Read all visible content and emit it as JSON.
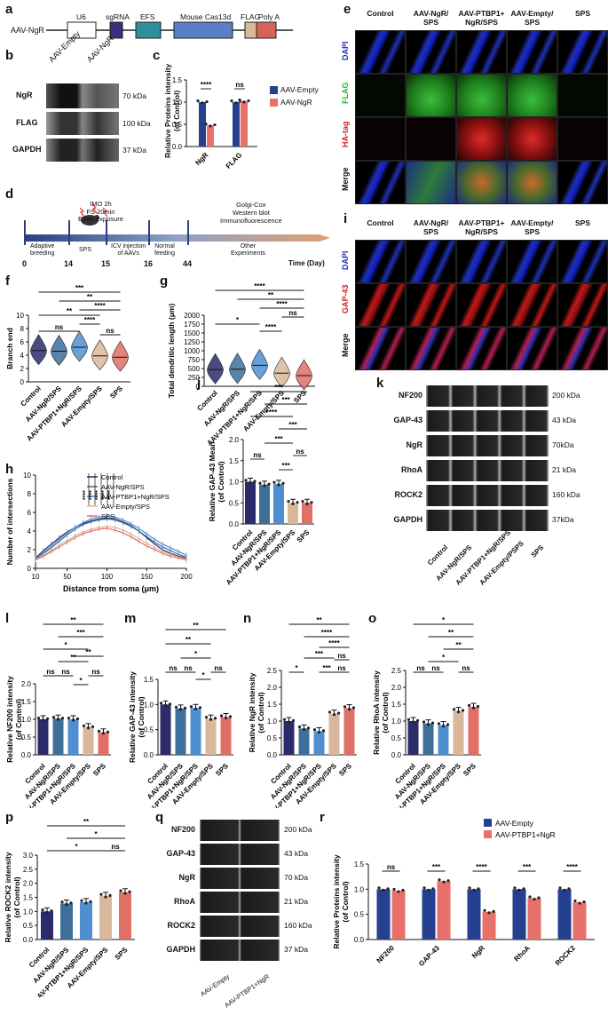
{
  "panels": [
    "a",
    "b",
    "c",
    "d",
    "e",
    "f",
    "g",
    "h",
    "i",
    "j",
    "k",
    "l",
    "m",
    "n",
    "o",
    "p",
    "q",
    "r"
  ],
  "colors": {
    "control": "#2b2b6b",
    "ngr": "#3d6f9a",
    "ptbp1": "#4f8fcf",
    "empty": "#d8b79b",
    "sps": "#e07066",
    "aav_empty_bar": "#25408f",
    "aav_ngr_bar": "#e8706a",
    "dapi": "#1e2fbf",
    "flag": "#2fb52f",
    "ha": "#d62020",
    "gap": "#d62020",
    "timeline": "#d9a070"
  },
  "a": {
    "construct": "AAV-NgR",
    "elements": [
      "U6",
      "sgRNA",
      "EFS",
      "Mouse Cas13d",
      "FLAG",
      "Poly A"
    ]
  },
  "b": {
    "lanes": [
      "AAV-Empty",
      "AAV-NgR"
    ],
    "rows": [
      {
        "name": "NgR",
        "kda": "70 kDa"
      },
      {
        "name": "FLAG",
        "kda": "100 kDa"
      },
      {
        "name": "GAPDH",
        "kda": "37 kDa"
      }
    ]
  },
  "c": {
    "ylabel": "Relative Proteins intensity\n(of Control)",
    "legend": [
      "AAV-Empty",
      "AAV-NgR"
    ],
    "sig": [
      "****",
      "ns"
    ]
  },
  "chart_data": [
    {
      "id": "c",
      "type": "bar",
      "categories": [
        "NgR",
        "FLAG"
      ],
      "series": [
        {
          "name": "AAV-Empty",
          "values": [
            1.0,
            1.0
          ]
        },
        {
          "name": "AAV-NgR",
          "values": [
            0.48,
            1.02
          ]
        }
      ],
      "ylabel": "Relative Proteins intensity (of Control)",
      "ylim": [
        0,
        1.5
      ],
      "yticks": [
        "0.0",
        "0.5",
        "1.0",
        "1.5"
      ]
    },
    {
      "id": "f",
      "type": "violin",
      "categories": [
        "Control",
        "AAV-NgR/SPS",
        "AAV-PTBP1+NgR/SPS",
        "AAV-Empty/SPS",
        "SPS"
      ],
      "medians": [
        4.7,
        4.6,
        5.2,
        3.9,
        3.7
      ],
      "ylabel": "Branch end",
      "ylim": [
        0,
        10
      ],
      "yticks": [
        "0",
        "2",
        "4",
        "6",
        "8",
        "10"
      ]
    },
    {
      "id": "g",
      "type": "violin",
      "categories": [
        "Control",
        "AAV-NgR/SPS",
        "AAV-PTBP1+NgR/SPS",
        "AAV-Empty/SPS",
        "SPS"
      ],
      "medians": [
        470,
        480,
        590,
        370,
        300
      ],
      "ylabel": "Total dendritic length (μm)",
      "ylim": [
        0,
        2000
      ],
      "yticks": [
        "0",
        "250",
        "500",
        "750",
        "1000",
        "1250",
        "1500",
        "1750",
        "2000"
      ]
    },
    {
      "id": "h",
      "type": "line",
      "x": [
        10,
        20,
        30,
        40,
        50,
        60,
        70,
        80,
        90,
        100,
        110,
        120,
        130,
        140,
        150,
        160,
        170,
        180,
        190,
        200
      ],
      "series": [
        {
          "name": "Control",
          "values": [
            1.1,
            1.9,
            2.6,
            3.3,
            3.9,
            4.4,
            4.8,
            5.1,
            5.3,
            5.4,
            5.3,
            5.0,
            4.6,
            4.0,
            3.3,
            2.6,
            2.0,
            1.6,
            1.3,
            1.1
          ]
        },
        {
          "name": "AAV-NgR/SPS",
          "values": [
            1.0,
            1.6,
            2.2,
            2.9,
            3.6,
            4.2,
            4.7,
            5.0,
            5.2,
            5.3,
            5.2,
            4.9,
            4.5,
            4.0,
            3.4,
            2.8,
            2.3,
            1.9,
            1.5,
            1.2
          ]
        },
        {
          "name": "AAV-PTBP1+NgR/SPS",
          "values": [
            1.0,
            1.7,
            2.4,
            3.1,
            3.8,
            4.4,
            4.9,
            5.3,
            5.5,
            5.6,
            5.5,
            5.2,
            4.8,
            4.3,
            3.7,
            3.1,
            2.6,
            2.2,
            1.8,
            1.4
          ]
        },
        {
          "name": "AAV-Empty/SPS",
          "values": [
            0.9,
            1.4,
            1.9,
            2.5,
            3.0,
            3.5,
            3.9,
            4.2,
            4.4,
            4.5,
            4.4,
            4.1,
            3.7,
            3.2,
            2.7,
            2.2,
            1.8,
            1.5,
            1.2,
            1.0
          ]
        },
        {
          "name": "SPS",
          "values": [
            0.9,
            1.3,
            1.8,
            2.3,
            2.8,
            3.3,
            3.7,
            4.0,
            4.2,
            4.3,
            4.1,
            3.8,
            3.4,
            2.9,
            2.4,
            2.0,
            1.6,
            1.3,
            1.1,
            0.9
          ]
        }
      ],
      "xlabel": "Distance from soma  (μm)",
      "ylabel": "Number of intersections",
      "xticks": [
        "10",
        "50",
        "100",
        "150",
        "200"
      ],
      "yticks": [
        "0",
        "2",
        "4",
        "6",
        "8",
        "10"
      ],
      "ylim": [
        0,
        10
      ]
    },
    {
      "id": "j",
      "type": "bar",
      "categories": [
        "Control",
        "AAV-NgR/SPS",
        "AAV-PTBP1+NgR/SPS",
        "AAV-Empty/SPS",
        "SPS"
      ],
      "values": [
        1.0,
        0.93,
        0.95,
        0.5,
        0.5
      ],
      "ylabel": "Relative GAP-43 Mean\n(of Control)",
      "ylim": [
        0,
        2.0
      ],
      "yticks": [
        "0.0",
        "0.5",
        "1.0",
        "1.5",
        "2.0"
      ]
    },
    {
      "id": "l",
      "type": "bar",
      "categories": [
        "Control",
        "AAV-NgR/SPS",
        "AAV-PTBP1+NgR/SPS",
        "AAV-Empty/SPS",
        "SPS"
      ],
      "values": [
        1.0,
        1.02,
        1.0,
        0.78,
        0.63
      ],
      "ylabel": "Relative NF200 intensity\n(of Control)",
      "ylim": [
        0,
        2.0
      ],
      "yticks": [
        "0.0",
        "0.5",
        "1.0",
        "1.5",
        "2.0"
      ]
    },
    {
      "id": "m",
      "type": "bar",
      "categories": [
        "Control",
        "AAV-NgR/SPS",
        "AAV-PTBP1+NgR/SPS",
        "AAV-Empty/SPS",
        "SPS"
      ],
      "values": [
        1.0,
        0.92,
        0.93,
        0.72,
        0.75
      ],
      "ylabel": "Relative GAP-43 intensity\n(of Control)",
      "ylim": [
        0,
        1.5
      ],
      "yticks": [
        "0.0",
        "0.5",
        "1.0",
        "1.5"
      ]
    },
    {
      "id": "n",
      "type": "bar",
      "categories": [
        "Control",
        "AAV-NgR/SPS",
        "AAV-PTBP1+NgR/SPS",
        "AAV-Empty/SPS",
        "SPS"
      ],
      "values": [
        1.0,
        0.78,
        0.7,
        1.22,
        1.38
      ],
      "ylabel": "Relative NgR intensity\n(of Control)",
      "ylim": [
        0,
        2.5
      ],
      "yticks": [
        "0.0",
        "0.5",
        "1.0",
        "1.5",
        "2.0",
        "2.5"
      ]
    },
    {
      "id": "o",
      "type": "bar",
      "categories": [
        "Control",
        "AAV-NgR/SPS",
        "AAV-PTBP1+NgR/SPS",
        "AAV-Empty/SPS",
        "SPS"
      ],
      "values": [
        1.0,
        0.93,
        0.88,
        1.3,
        1.42
      ],
      "ylabel": "Relative RhoA intensity\n(of Control)",
      "ylim": [
        0,
        2.5
      ],
      "yticks": [
        "0.0",
        "0.5",
        "1.0",
        "1.5",
        "2.0",
        "2.5"
      ]
    },
    {
      "id": "p",
      "type": "bar",
      "categories": [
        "Control",
        "AAV-NgR/SPS",
        "AAV-PTBP1+NgR/SPS",
        "AAV-Empty/SPS",
        "SPS"
      ],
      "values": [
        1.0,
        1.28,
        1.33,
        1.55,
        1.68
      ],
      "ylabel": "Relative ROCK2 intensity\n(of Control)",
      "ylim": [
        0,
        3.0
      ],
      "yticks": [
        "0.0",
        "0.5",
        "1.0",
        "1.5",
        "2.0",
        "2.5",
        "3.0"
      ]
    },
    {
      "id": "r",
      "type": "bar",
      "categories": [
        "NF200",
        "GAP-43",
        "NgR",
        "RhoA",
        "ROCK2"
      ],
      "series": [
        {
          "name": "AAV-Empty",
          "values": [
            1.0,
            1.0,
            1.0,
            1.0,
            1.0
          ]
        },
        {
          "name": "AAV-PTBP1+NgR",
          "values": [
            0.97,
            1.16,
            0.55,
            0.82,
            0.74
          ]
        }
      ],
      "ylabel": "Relative Proteins intensity\n(of Control)",
      "ylim": [
        0,
        1.5
      ],
      "yticks": [
        "0.0",
        "0.5",
        "1.0",
        "1.5"
      ]
    }
  ],
  "groups5": [
    "Control",
    "AAV-NgR/SPS",
    "AAV-PTBP1+NgR/SPS",
    "AAV-Empty/SPS",
    "SPS"
  ],
  "groups5_k": [
    "Control",
    "AAV-NgR/SPS",
    "AAV-PTBP1+NgR/SPS",
    "AAV-Empty/PSPS",
    "SPS"
  ],
  "d": {
    "days": [
      "0",
      "14",
      "15",
      "16",
      "44"
    ],
    "time_label": "Time (Day)",
    "stages": [
      "Adaptive\nbreeding",
      "SPS",
      "ICV injection\nof AAVs",
      "Normal\nfeeding",
      "Other\nExperiments"
    ],
    "top_text": "IMO 2h\nFS 20min\nEther exposure",
    "right_text": "Golgi-Cox\nWestern blot\nImmunofluorescence"
  },
  "e": {
    "columns": [
      "Control",
      "AAV-NgR/\nSPS",
      "AAV-PTBP1+\nNgR/SPS",
      "AAV-Empty/\nSPS",
      "SPS"
    ],
    "rows": [
      "DAPI",
      "FLAG",
      "HA-tag",
      "Merge"
    ]
  },
  "i": {
    "columns": [
      "Control",
      "AAV-NgR/\nSPS",
      "AAV-PTBP1+\nNgR/SPS",
      "AAV-Empty/\nSPS",
      "SPS"
    ],
    "rows": [
      "DAPI",
      "GAP-43",
      "Merge"
    ]
  },
  "k": {
    "rows": [
      {
        "name": "NF200",
        "kda": "200 kDa"
      },
      {
        "name": "GAP-43",
        "kda": "43 kDa"
      },
      {
        "name": "NgR",
        "kda": "70kDa"
      },
      {
        "name": "RhoA",
        "kda": "21 kDa"
      },
      {
        "name": "ROCK2",
        "kda": "160 kDa"
      },
      {
        "name": "GAPDH",
        "kda": "37kDa"
      }
    ]
  },
  "q": {
    "rows": [
      {
        "name": "NF200",
        "kda": "200 kDa"
      },
      {
        "name": "GAP-43",
        "kda": "43 kDa"
      },
      {
        "name": "NgR",
        "kda": "70 kDa"
      },
      {
        "name": "RhoA",
        "kda": "21 kDa"
      },
      {
        "name": "ROCK2",
        "kda": "160 kDa"
      },
      {
        "name": "GAPDH",
        "kda": "37 kDa"
      }
    ],
    "lanes": [
      "AAV-Empty",
      "AAV-PTBP1+NgR"
    ]
  },
  "r": {
    "legend": [
      "AAV-Empty",
      "AAV-PTBP1+NgR"
    ],
    "sig": [
      "ns",
      "***",
      "****",
      "***",
      "****"
    ]
  },
  "sig": {
    "f": [
      "***",
      "**",
      "****",
      "**",
      "****",
      "ns",
      "ns"
    ],
    "g": [
      "****",
      "**",
      "****",
      "ns",
      "*",
      "****"
    ],
    "h": [
      "****",
      "****",
      "****",
      "****",
      "****"
    ],
    "j": [
      "***",
      "***",
      "****",
      "***",
      "***",
      "ns",
      "ns",
      "***"
    ],
    "l": [
      "**",
      "***",
      "*",
      "**",
      "**",
      "ns",
      "ns",
      "*",
      "ns"
    ],
    "m": [
      "**",
      "**",
      "*",
      "ns",
      "ns",
      "*",
      "ns"
    ],
    "n": [
      "**",
      "****",
      "****",
      "***",
      "ns",
      "*",
      "***",
      "ns"
    ],
    "o": [
      "*",
      "**",
      "**",
      "*",
      "ns",
      "ns",
      "ns"
    ],
    "p": [
      "**",
      "*",
      "*",
      "ns"
    ]
  }
}
